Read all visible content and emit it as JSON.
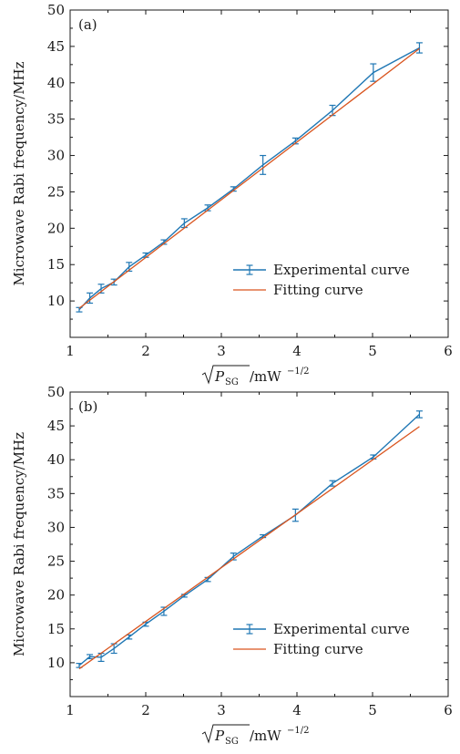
{
  "chart_data": [
    {
      "type": "line",
      "panel_label": "(a)",
      "xlabel_parts": {
        "radicand_main": "P",
        "radicand_sub": "SG",
        "unit": "/mW",
        "exponent": "−1/2"
      },
      "ylabel": "Microwave Rabi frequency/MHz",
      "xlim": [
        1,
        6
      ],
      "ylim": [
        5,
        50
      ],
      "x_ticks": [
        1,
        2,
        3,
        4,
        5,
        6
      ],
      "y_ticks": [
        10,
        15,
        20,
        25,
        30,
        35,
        40,
        45,
        50
      ],
      "grid": false,
      "legend_position": "bottom-right",
      "series": [
        {
          "name": "Experimental curve",
          "color": "#1f77b4",
          "x": [
            1.12,
            1.26,
            1.41,
            1.58,
            1.78,
            2.0,
            2.24,
            2.51,
            2.82,
            3.16,
            3.55,
            3.98,
            4.47,
            5.01,
            5.62
          ],
          "y": [
            8.8,
            10.4,
            11.7,
            12.6,
            14.7,
            16.3,
            18.1,
            20.7,
            22.8,
            25.4,
            28.7,
            32.0,
            36.2,
            41.4,
            44.8
          ],
          "err": [
            0.3,
            0.7,
            0.6,
            0.4,
            0.6,
            0.3,
            0.3,
            0.6,
            0.4,
            0.3,
            1.3,
            0.4,
            0.7,
            1.2,
            0.7
          ]
        },
        {
          "name": "Fitting curve",
          "color": "#d9541e",
          "x": [
            1.12,
            5.62
          ],
          "y": [
            9.0,
            44.7
          ]
        }
      ]
    },
    {
      "type": "line",
      "panel_label": "(b)",
      "xlabel_parts": {
        "radicand_main": "P",
        "radicand_sub": "SG",
        "unit": "/mW",
        "exponent": "−1/2"
      },
      "ylabel": "Microwave Rabi frequency/MHz",
      "xlim": [
        1,
        6
      ],
      "ylim": [
        5,
        50
      ],
      "x_ticks": [
        1,
        2,
        3,
        4,
        5,
        6
      ],
      "y_ticks": [
        10,
        15,
        20,
        25,
        30,
        35,
        40,
        45,
        50
      ],
      "grid": false,
      "legend_position": "bottom-right",
      "series": [
        {
          "name": "Experimental curve",
          "color": "#1f77b4",
          "x": [
            1.12,
            1.26,
            1.41,
            1.58,
            1.78,
            2.0,
            2.24,
            2.51,
            2.82,
            3.16,
            3.55,
            3.98,
            4.47,
            5.01,
            5.62
          ],
          "y": [
            9.6,
            10.9,
            10.8,
            12.1,
            13.8,
            15.7,
            17.6,
            19.9,
            22.3,
            25.7,
            28.7,
            31.8,
            36.5,
            40.4,
            46.7
          ],
          "err": [
            0.3,
            0.3,
            0.6,
            0.7,
            0.3,
            0.3,
            0.6,
            0.2,
            0.3,
            0.5,
            0.2,
            0.9,
            0.4,
            0.3,
            0.5
          ]
        },
        {
          "name": "Fitting curve",
          "color": "#d9541e",
          "x": [
            1.12,
            5.62
          ],
          "y": [
            9.1,
            44.9
          ]
        }
      ]
    }
  ]
}
